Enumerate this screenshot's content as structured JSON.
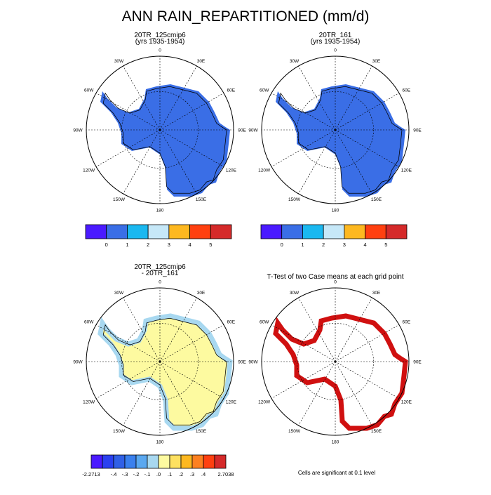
{
  "title": "ANN RAIN_REPARTITIONED (mm/d)",
  "lon_labels": [
    "0",
    "30E",
    "60E",
    "90E",
    "120E",
    "150E",
    "180",
    "150W",
    "120W",
    "90W",
    "60W",
    "30W"
  ],
  "panels": [
    {
      "title_lines": [
        "20TR_125cmip6",
        "(yrs 1935-1954)"
      ],
      "style": "field"
    },
    {
      "title_lines": [
        "20TR_161",
        "(yrs 1935-1954)"
      ],
      "style": "field"
    },
    {
      "title_lines": [
        "20TR_125cmip6",
        "- 20TR_161"
      ],
      "style": "diff"
    },
    {
      "title_lines": [
        "T-Test of two Case means at each grid point"
      ],
      "style": "ttest"
    }
  ],
  "colorbars": [
    {
      "colors": [
        "#4a1aff",
        "#3a6ee6",
        "#1ab8f0",
        "#c6e8f8",
        "#fdb820",
        "#ff4010",
        "#d52a2a"
      ],
      "labels": [
        null,
        "0",
        "1",
        "2",
        "3",
        "4",
        "5",
        null
      ]
    },
    {
      "colors": [
        "#4a1aff",
        "#3a6ee6",
        "#1ab8f0",
        "#c6e8f8",
        "#fdb820",
        "#ff4010",
        "#d52a2a"
      ],
      "labels": [
        null,
        "0",
        "1",
        "2",
        "3",
        "4",
        "5",
        null
      ]
    },
    {
      "colors": [
        "#4a1aff",
        "#2a40f0",
        "#3060e6",
        "#3a80ee",
        "#5aa8f0",
        "#a8d8f0",
        "#fdfaa0",
        "#fde060",
        "#fdb820",
        "#fd8020",
        "#ff4010",
        "#d52a2a"
      ],
      "labels": [
        "-2.2713",
        null,
        "-.4",
        "-.3",
        "-.2",
        "-.1",
        ".0",
        ".1",
        ".2",
        ".3",
        ".4",
        null,
        "2.7038"
      ]
    }
  ],
  "footnote": "Cells are significant at 0.1 level"
}
